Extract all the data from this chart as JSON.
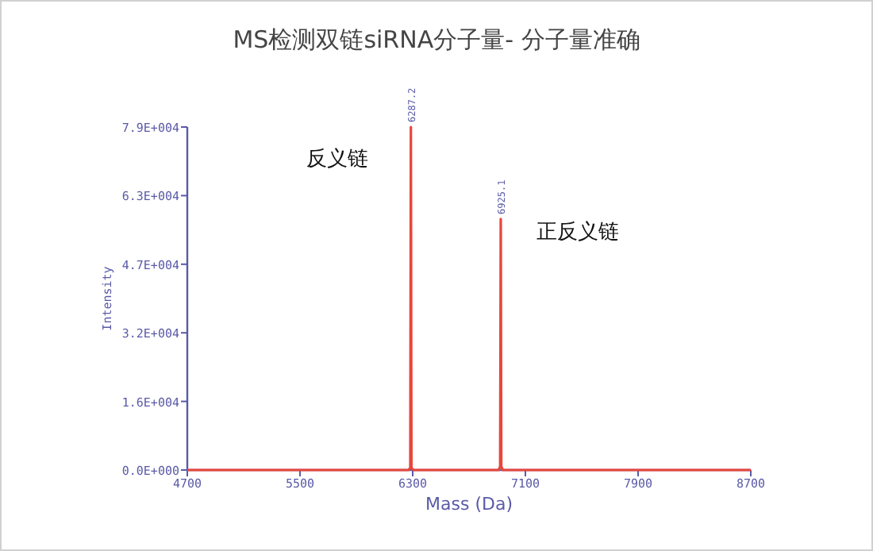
{
  "chart_data": {
    "type": "line",
    "title": "MS检测双链siRNA分子量- 分子量准确",
    "xlabel": "Mass (Da)",
    "ylabel": "Intensity",
    "x": [
      4700,
      6270,
      6283,
      6287.2,
      6291,
      6305,
      6910,
      6921,
      6925.1,
      6929,
      6940,
      8700
    ],
    "series": [
      {
        "color": "#e8463a",
        "values": [
          0,
          0,
          500,
          79000,
          500,
          0,
          0,
          800,
          57800,
          800,
          0,
          0
        ]
      }
    ],
    "xlim": [
      4700,
      8700
    ],
    "xticks": [
      4700,
      5500,
      6300,
      7100,
      7900,
      8700
    ],
    "ylim": [
      0,
      79000
    ],
    "yticks": [
      {
        "value": 0,
        "label": "0.0E+000"
      },
      {
        "value": 15800,
        "label": "1.6E+004"
      },
      {
        "value": 31600,
        "label": "3.2E+004"
      },
      {
        "value": 47400,
        "label": "4.7E+004"
      },
      {
        "value": 63200,
        "label": "6.3E+004"
      },
      {
        "value": 79000,
        "label": "7.9E+004"
      }
    ],
    "annotations": [
      {
        "text": "6287.2",
        "x": 6287.2,
        "y": 79000
      },
      {
        "text": "6925.1",
        "x": 6925.1,
        "y": 57800
      },
      "反义链",
      "正反义链"
    ],
    "grid": false,
    "marker": "none",
    "line_style": "solid"
  }
}
